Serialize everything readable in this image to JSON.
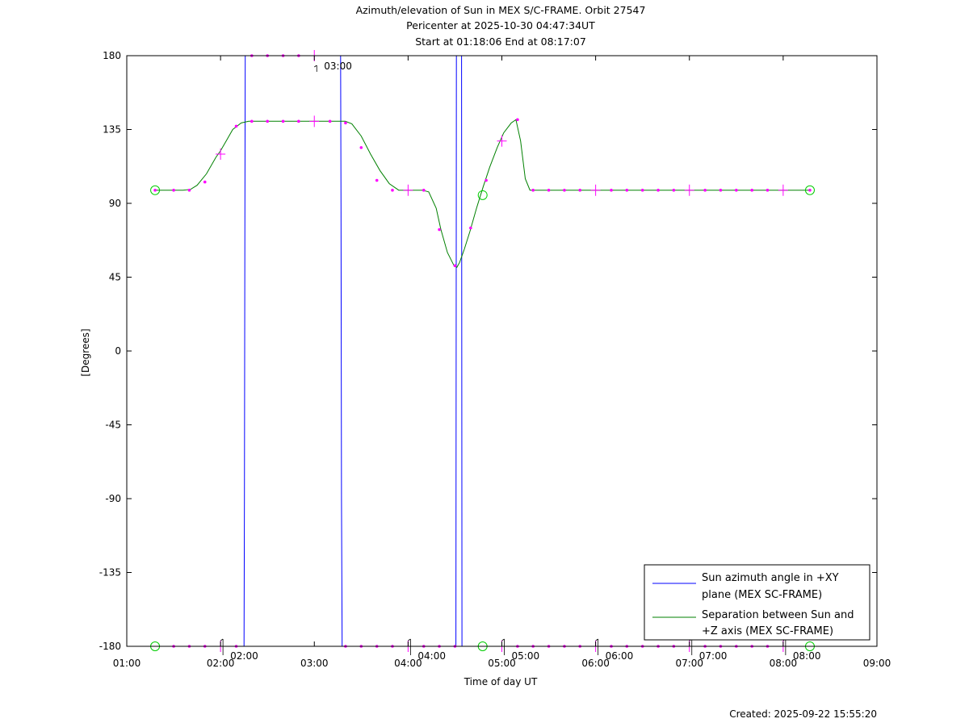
{
  "colors": {
    "azimuth": "#0000ff",
    "separation": "#008000",
    "marker": "#ff00ff",
    "endpoint": "#00cc00",
    "axis": "#000000"
  },
  "chart_data": {
    "type": "line",
    "title_lines": [
      "Azimuth/elevation of Sun in MEX S/C-FRAME.  Orbit 27547",
      "Pericenter at 2025-10-30 04:47:34UT",
      "Start at 01:18:06 End at 08:17:07"
    ],
    "xlabel": "Time of day UT",
    "ylabel": "[Degrees]",
    "x_unit": "hours of day UT",
    "xlim": [
      1,
      9
    ],
    "ylim": [
      -180,
      180
    ],
    "xticks": [
      {
        "v": 1,
        "label": "01:00"
      },
      {
        "v": 2,
        "label": "02:00"
      },
      {
        "v": 3,
        "label": "03:00"
      },
      {
        "v": 4,
        "label": "04:00"
      },
      {
        "v": 5,
        "label": "05:00"
      },
      {
        "v": 6,
        "label": "06:00"
      },
      {
        "v": 7,
        "label": "07:00"
      },
      {
        "v": 8,
        "label": "08:00"
      },
      {
        "v": 9,
        "label": "09:00"
      }
    ],
    "yticks": [
      {
        "v": 180,
        "label": "180"
      },
      {
        "v": 135,
        "label": "135"
      },
      {
        "v": 90,
        "label": "90"
      },
      {
        "v": 45,
        "label": "45"
      },
      {
        "v": 0,
        "label": "0"
      },
      {
        "v": -45,
        "label": "-45"
      },
      {
        "v": -90,
        "label": "-90"
      },
      {
        "v": -135,
        "label": "-135"
      },
      {
        "v": -180,
        "label": "-180"
      }
    ],
    "grid": false,
    "legend_position": "bottom-right",
    "series": [
      {
        "name": "Sun azimuth angle in +XY plane (MEX SC-FRAME)",
        "legend_lines": [
          "Sun azimuth angle in +XY",
          "plane (MEX SC-FRAME)"
        ],
        "color": "#0000ff",
        "points": [
          [
            1.302,
            -180
          ],
          [
            2.25,
            -180
          ],
          [
            2.255,
            -90
          ],
          [
            2.26,
            90
          ],
          [
            2.263,
            180
          ],
          [
            3.28,
            180
          ],
          [
            3.285,
            90
          ],
          [
            3.29,
            -90
          ],
          [
            3.297,
            -180
          ],
          [
            4.51,
            -180
          ],
          [
            4.515,
            180
          ],
          [
            4.57,
            180
          ],
          [
            4.575,
            -180
          ],
          [
            8.285,
            -180
          ]
        ]
      },
      {
        "name": "Separation between Sun and +Z axis (MEX SC-FRAME)",
        "legend_lines": [
          "Separation between Sun and",
          "+Z axis (MEX SC-FRAME)"
        ],
        "color": "#008000",
        "points": [
          [
            1.302,
            98
          ],
          [
            1.5,
            98
          ],
          [
            1.6,
            98
          ],
          [
            1.68,
            98.5
          ],
          [
            1.75,
            101
          ],
          [
            1.85,
            108
          ],
          [
            1.95,
            118
          ],
          [
            2.0,
            122
          ],
          [
            2.06,
            128
          ],
          [
            2.13,
            135
          ],
          [
            2.22,
            139
          ],
          [
            2.3,
            140
          ],
          [
            2.5,
            140
          ],
          [
            3.0,
            140
          ],
          [
            3.33,
            140
          ],
          [
            3.4,
            138.5
          ],
          [
            3.5,
            131
          ],
          [
            3.6,
            120
          ],
          [
            3.7,
            110
          ],
          [
            3.8,
            102
          ],
          [
            3.9,
            98
          ],
          [
            4.0,
            98
          ],
          [
            4.15,
            98
          ],
          [
            4.22,
            97
          ],
          [
            4.3,
            87
          ],
          [
            4.35,
            74
          ],
          [
            4.42,
            60
          ],
          [
            4.49,
            52
          ],
          [
            4.52,
            51
          ],
          [
            4.55,
            54
          ],
          [
            4.6,
            62
          ],
          [
            4.66,
            73
          ],
          [
            4.73,
            87
          ],
          [
            4.8,
            100
          ],
          [
            4.87,
            112
          ],
          [
            4.95,
            124
          ],
          [
            5.02,
            133
          ],
          [
            5.1,
            139
          ],
          [
            5.15,
            141
          ],
          [
            5.2,
            128
          ],
          [
            5.25,
            105
          ],
          [
            5.3,
            98
          ],
          [
            5.6,
            98
          ],
          [
            6.0,
            98
          ],
          [
            7.0,
            98
          ],
          [
            8.0,
            98
          ],
          [
            8.285,
            98
          ]
        ]
      }
    ],
    "markers": [
      {
        "x": 1.302,
        "y": 98
      },
      {
        "x": 1.5,
        "y": 98
      },
      {
        "x": 1.667,
        "y": 98
      },
      {
        "x": 1.833,
        "y": 103
      },
      {
        "x": 2.167,
        "y": 137
      },
      {
        "x": 2.333,
        "y": 140
      },
      {
        "x": 2.5,
        "y": 140
      },
      {
        "x": 2.667,
        "y": 140
      },
      {
        "x": 2.833,
        "y": 140
      },
      {
        "x": 3.167,
        "y": 140
      },
      {
        "x": 3.333,
        "y": 139
      },
      {
        "x": 3.5,
        "y": 124
      },
      {
        "x": 3.667,
        "y": 104
      },
      {
        "x": 3.833,
        "y": 98
      },
      {
        "x": 4.167,
        "y": 98
      },
      {
        "x": 4.333,
        "y": 74
      },
      {
        "x": 4.5,
        "y": 52
      },
      {
        "x": 4.667,
        "y": 75
      },
      {
        "x": 4.833,
        "y": 104
      },
      {
        "x": 5.167,
        "y": 141
      },
      {
        "x": 5.333,
        "y": 98
      },
      {
        "x": 5.5,
        "y": 98
      },
      {
        "x": 5.667,
        "y": 98
      },
      {
        "x": 5.833,
        "y": 98
      },
      {
        "x": 6.167,
        "y": 98
      },
      {
        "x": 6.333,
        "y": 98
      },
      {
        "x": 6.5,
        "y": 98
      },
      {
        "x": 6.667,
        "y": 98
      },
      {
        "x": 6.833,
        "y": 98
      },
      {
        "x": 7.167,
        "y": 98
      },
      {
        "x": 7.333,
        "y": 98
      },
      {
        "x": 7.5,
        "y": 98
      },
      {
        "x": 7.667,
        "y": 98
      },
      {
        "x": 7.833,
        "y": 98
      },
      {
        "x": 8.285,
        "y": 98
      },
      {
        "x": 2.333,
        "y": 180
      },
      {
        "x": 2.5,
        "y": 180
      },
      {
        "x": 2.667,
        "y": 180
      },
      {
        "x": 2.833,
        "y": 180
      },
      {
        "x": 1.5,
        "y": -180
      },
      {
        "x": 1.667,
        "y": -180
      },
      {
        "x": 1.833,
        "y": -180
      },
      {
        "x": 2.167,
        "y": -180
      },
      {
        "x": 3.333,
        "y": -180
      },
      {
        "x": 3.5,
        "y": -180
      },
      {
        "x": 3.667,
        "y": -180
      },
      {
        "x": 3.833,
        "y": -180
      },
      {
        "x": 4.167,
        "y": -180
      },
      {
        "x": 4.333,
        "y": -180
      },
      {
        "x": 4.5,
        "y": -180
      },
      {
        "x": 5.167,
        "y": -180
      },
      {
        "x": 5.333,
        "y": -180
      },
      {
        "x": 5.5,
        "y": -180
      },
      {
        "x": 5.667,
        "y": -180
      },
      {
        "x": 5.833,
        "y": -180
      },
      {
        "x": 6.167,
        "y": -180
      },
      {
        "x": 6.333,
        "y": -180
      },
      {
        "x": 6.5,
        "y": -180
      },
      {
        "x": 6.667,
        "y": -180
      },
      {
        "x": 6.833,
        "y": -180
      },
      {
        "x": 7.167,
        "y": -180
      },
      {
        "x": 7.333,
        "y": -180
      },
      {
        "x": 7.5,
        "y": -180
      },
      {
        "x": 7.667,
        "y": -180
      },
      {
        "x": 7.833,
        "y": -180
      }
    ],
    "hour_markers": [
      {
        "x": 2.0,
        "y": 120
      },
      {
        "x": 3.0,
        "y": 140
      },
      {
        "x": 4.0,
        "y": 98
      },
      {
        "x": 5.0,
        "y": 128
      },
      {
        "x": 6.0,
        "y": 98
      },
      {
        "x": 7.0,
        "y": 98
      },
      {
        "x": 8.0,
        "y": 98
      },
      {
        "x": 3.0,
        "y": 180
      },
      {
        "x": 2.0,
        "y": -180
      },
      {
        "x": 4.0,
        "y": -180
      },
      {
        "x": 5.0,
        "y": -180
      },
      {
        "x": 6.0,
        "y": -180
      },
      {
        "x": 7.0,
        "y": -180
      },
      {
        "x": 8.0,
        "y": -180
      }
    ],
    "circle_markers": [
      {
        "x": 1.302,
        "y": 98
      },
      {
        "x": 8.285,
        "y": 98
      },
      {
        "x": 4.795,
        "y": 95
      },
      {
        "x": 1.302,
        "y": -180
      },
      {
        "x": 8.285,
        "y": -180
      },
      {
        "x": 4.795,
        "y": -180
      }
    ],
    "annotations": [
      {
        "x": 2.0,
        "y": -180,
        "text": "02:00"
      },
      {
        "x": 3.0,
        "y": 180,
        "text": "03:00"
      },
      {
        "x": 4.0,
        "y": -180,
        "text": "04:00"
      },
      {
        "x": 5.0,
        "y": -180,
        "text": "05:00"
      },
      {
        "x": 6.0,
        "y": -180,
        "text": "06:00"
      },
      {
        "x": 7.0,
        "y": -180,
        "text": "07:00"
      },
      {
        "x": 8.0,
        "y": -180,
        "text": "08:00"
      }
    ]
  },
  "footer": {
    "created": "Created: 2025-09-22 15:55:20"
  }
}
